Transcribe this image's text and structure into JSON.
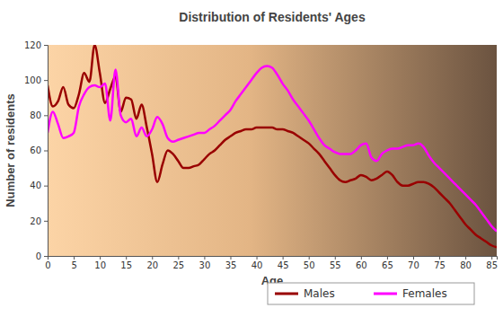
{
  "chart_data": {
    "type": "line",
    "title": "Distribution of Residents' Ages",
    "x_label": "Age",
    "y_label": "Number of residents",
    "x": [
      0,
      1,
      2,
      3,
      4,
      5,
      6,
      7,
      8,
      9,
      10,
      11,
      12,
      13,
      14,
      15,
      16,
      17,
      18,
      19,
      20,
      21,
      22,
      23,
      24,
      25,
      26,
      27,
      28,
      29,
      30,
      31,
      32,
      33,
      34,
      35,
      36,
      37,
      38,
      39,
      40,
      41,
      42,
      43,
      44,
      45,
      46,
      47,
      48,
      49,
      50,
      51,
      52,
      53,
      54,
      55,
      56,
      57,
      58,
      59,
      60,
      61,
      62,
      63,
      64,
      65,
      66,
      67,
      68,
      69,
      70,
      71,
      72,
      73,
      74,
      75,
      76,
      77,
      78,
      79,
      80,
      81,
      82,
      83,
      84,
      85,
      86
    ],
    "series": [
      {
        "name": "Males",
        "color": "#990000",
        "values": [
          97,
          85,
          88,
          96,
          86,
          84,
          92,
          104,
          99,
          120,
          104,
          87,
          95,
          102,
          82,
          90,
          89,
          78,
          86,
          73,
          58,
          42,
          52,
          60,
          58,
          54,
          50,
          50,
          51,
          52,
          55,
          58,
          60,
          63,
          66,
          68,
          70,
          71,
          72,
          72,
          73,
          73,
          73,
          73,
          72,
          72,
          71,
          70,
          68,
          66,
          64,
          61,
          58,
          54,
          50,
          46,
          43,
          42,
          43,
          44,
          46,
          45,
          43,
          44,
          46,
          48,
          46,
          42,
          40,
          40,
          41,
          42,
          42,
          41,
          39,
          36,
          33,
          30,
          26,
          22,
          18,
          15,
          12,
          10,
          8,
          6,
          5
        ]
      },
      {
        "name": "Females",
        "color": "#ff00ff",
        "values": [
          70,
          82,
          75,
          67,
          68,
          70,
          85,
          92,
          96,
          97,
          96,
          98,
          77,
          106,
          80,
          76,
          78,
          68,
          73,
          68,
          72,
          79,
          75,
          67,
          65,
          66,
          67,
          68,
          69,
          70,
          70,
          72,
          74,
          77,
          80,
          83,
          88,
          92,
          96,
          100,
          104,
          107,
          108,
          107,
          103,
          98,
          94,
          89,
          85,
          81,
          77,
          72,
          67,
          63,
          61,
          59,
          58,
          58,
          58,
          60,
          63,
          64,
          56,
          54,
          58,
          60,
          61,
          61,
          62,
          63,
          63,
          64,
          62,
          57,
          53,
          50,
          47,
          44,
          41,
          38,
          35,
          32,
          29,
          25,
          21,
          17,
          14
        ]
      }
    ],
    "xlim": [
      0,
      86
    ],
    "xticks": [
      0,
      5,
      10,
      15,
      20,
      25,
      30,
      35,
      40,
      45,
      50,
      55,
      60,
      65,
      70,
      75,
      80,
      85
    ],
    "ylim": [
      0,
      120
    ],
    "yticks": [
      0,
      20,
      40,
      60,
      80,
      100,
      120
    ],
    "grid": false,
    "legend": "bottom"
  }
}
